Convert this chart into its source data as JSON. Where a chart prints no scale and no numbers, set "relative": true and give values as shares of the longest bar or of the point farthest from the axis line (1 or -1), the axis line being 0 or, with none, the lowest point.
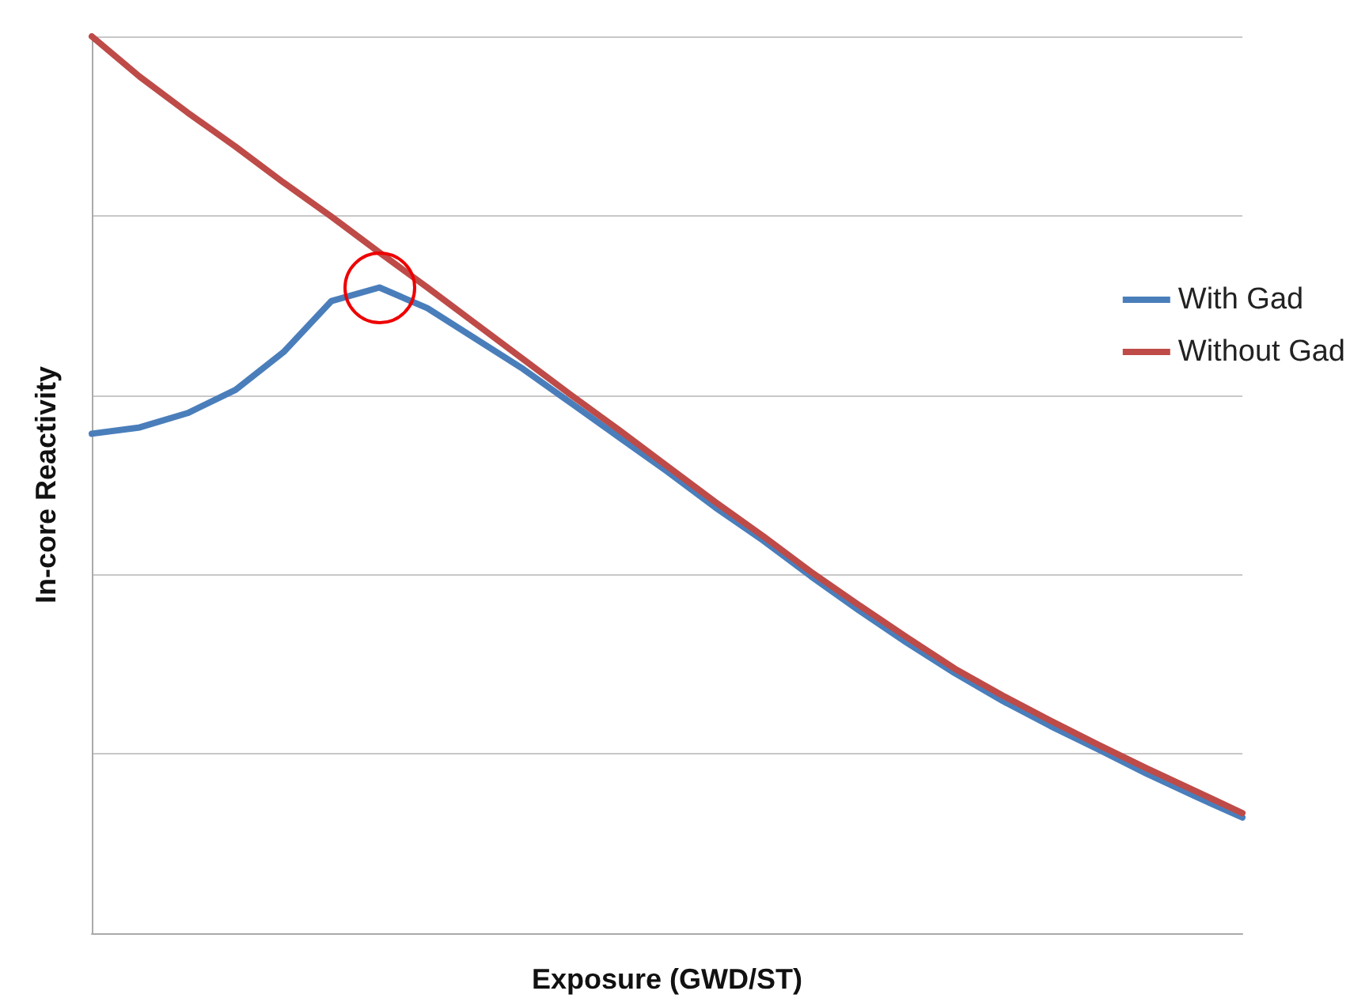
{
  "chart_data": {
    "type": "line",
    "xlabel": "Exposure (GWD/ST)",
    "ylabel": "In-core Reactivity",
    "relative": true,
    "grid": "y",
    "legend": "right",
    "marker": "none",
    "line_style": "solid",
    "categories": [
      null,
      null,
      null,
      null,
      null,
      null,
      null,
      null,
      null,
      null,
      null,
      null,
      null,
      null,
      null,
      null,
      null,
      null,
      null,
      null,
      null,
      null,
      null,
      null,
      null
    ],
    "series": [
      {
        "name": "With Gad",
        "color": "#4a7ebb",
        "values": [
          0.557,
          0.564,
          0.58,
          0.606,
          0.648,
          0.705,
          0.72,
          0.697,
          0.663,
          0.629,
          0.591,
          0.553,
          0.515,
          0.475,
          0.438,
          0.398,
          0.36,
          0.324,
          0.29,
          0.259,
          0.231,
          0.205,
          0.178,
          0.153,
          0.129
        ]
      },
      {
        "name": "Without Gad",
        "color": "#be4b48",
        "values": [
          1.0,
          0.955,
          0.915,
          0.877,
          0.837,
          0.799,
          0.759,
          0.72,
          0.68,
          0.64,
          0.6,
          0.561,
          0.521,
          0.481,
          0.443,
          0.403,
          0.366,
          0.33,
          0.295,
          0.265,
          0.237,
          0.21,
          0.184,
          0.159,
          0.134
        ]
      }
    ]
  }
}
